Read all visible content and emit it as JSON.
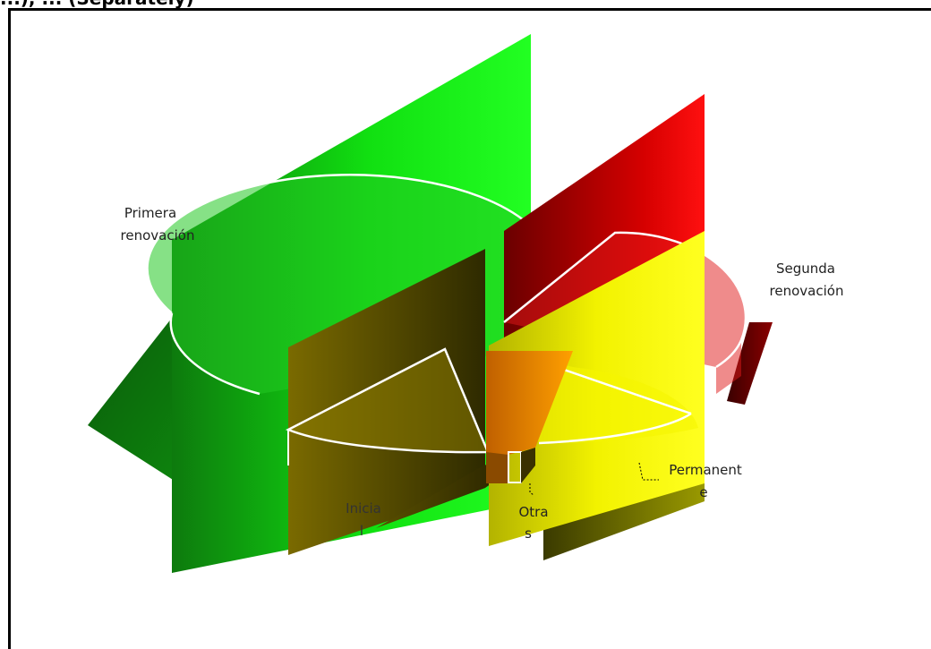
{
  "header": {
    "title_fragment": "...), ... (Separately)"
  },
  "chart_data": {
    "type": "pie",
    "style": "3d-exploded",
    "slices": [
      {
        "label": "Primera renovación",
        "label_lines": [
          "Primera",
          "renovación"
        ],
        "value": 40,
        "color": "#00c800"
      },
      {
        "label": "Segunda renovación",
        "label_lines": [
          "Segunda",
          "renovación"
        ],
        "value": 18,
        "color": "#c00000"
      },
      {
        "label": "Permanente",
        "label_lines": [
          "Permanent",
          "e"
        ],
        "value": 20,
        "color": "#e6e600"
      },
      {
        "label": "Otras",
        "label_lines": [
          "Otra",
          "s"
        ],
        "value": 3,
        "color": "#ff8c00"
      },
      {
        "label": "Inicial",
        "label_lines": [
          "Inicia",
          "l"
        ],
        "value": 19,
        "color": "#6b5e00"
      }
    ],
    "legend": "none",
    "data_labels": "category names"
  }
}
